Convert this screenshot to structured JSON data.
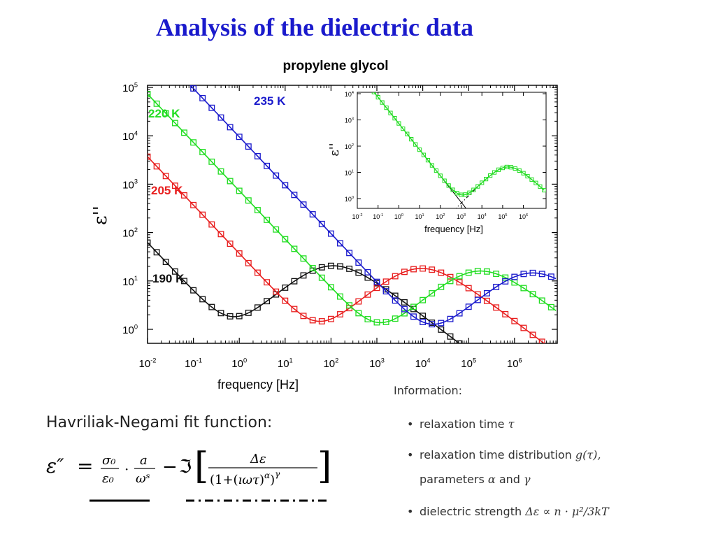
{
  "slide": {
    "title": "Analysis of the dielectric data",
    "fit_heading": "Havriliak-Negami fit function:",
    "formula": "ε″ = σ₀/ε₀ · a/ωˢ − ℑ[ Δε / (1+(ıωτ)^α)^γ ]",
    "info_heading": "Information:",
    "bullets": [
      {
        "text": "relaxation time",
        "math": "τ"
      },
      {
        "text": "relaxation time distribution",
        "math": "g(τ),"
      },
      {
        "text": "parameters",
        "math": "α",
        "text2": "and",
        "math2": "γ"
      },
      {
        "text": "dielectric strength",
        "math": "Δε ∝ n · μ²/3kT"
      }
    ]
  },
  "chart_data": {
    "type": "scatter",
    "title": "propylene glycol",
    "xlabel": "frequency  [Hz]",
    "ylabel": "ε''",
    "xscale": "log",
    "yscale": "log",
    "xlim": [
      0.01,
      8000000
    ],
    "ylim": [
      0.5,
      100000
    ],
    "xticks": [
      "10^-2",
      "10^-1",
      "10^0",
      "10^1",
      "10^2",
      "10^3",
      "10^4",
      "10^5",
      "10^6"
    ],
    "yticks": [
      "10^0",
      "10^1",
      "10^2",
      "10^3",
      "10^4",
      "10^5"
    ],
    "series": [
      {
        "name": "190 K",
        "color": "#111111",
        "tau": 0.0016,
        "delta": 59,
        "cond": 0.62,
        "slope": 1.0,
        "alpha": 0.8,
        "gamma": 0.9
      },
      {
        "name": "205 K",
        "color": "#e81e1e",
        "tau": 1.9e-05,
        "delta": 52,
        "cond": 37,
        "slope": 1.0,
        "alpha": 0.8,
        "gamma": 0.9
      },
      {
        "name": "220 K",
        "color": "#22dd22",
        "tau": 9.8e-07,
        "delta": 46,
        "cond": 730,
        "slope": 1.0,
        "alpha": 0.8,
        "gamma": 0.9
      },
      {
        "name": "235 K",
        "color": "#1a1acc",
        "tau": 7.1e-08,
        "delta": 42,
        "cond": 9500,
        "slope": 1.0,
        "alpha": 0.8,
        "gamma": 0.9
      }
    ],
    "inset": {
      "xlabel": "frequency  [Hz]",
      "ylabel": "ε''",
      "xlim": [
        0.01,
        8000000
      ],
      "ylim": [
        0.5,
        10000
      ],
      "xticks": [
        "10^-2",
        "10^-1",
        "10^0",
        "10^1",
        "10^2",
        "10^3",
        "10^4",
        "10^5",
        "10^6"
      ],
      "yticks": [
        "10^0",
        "10^1",
        "10^2",
        "10^3",
        "10^4"
      ],
      "series": {
        "name": "220 K",
        "color": "#22dd22"
      }
    }
  }
}
